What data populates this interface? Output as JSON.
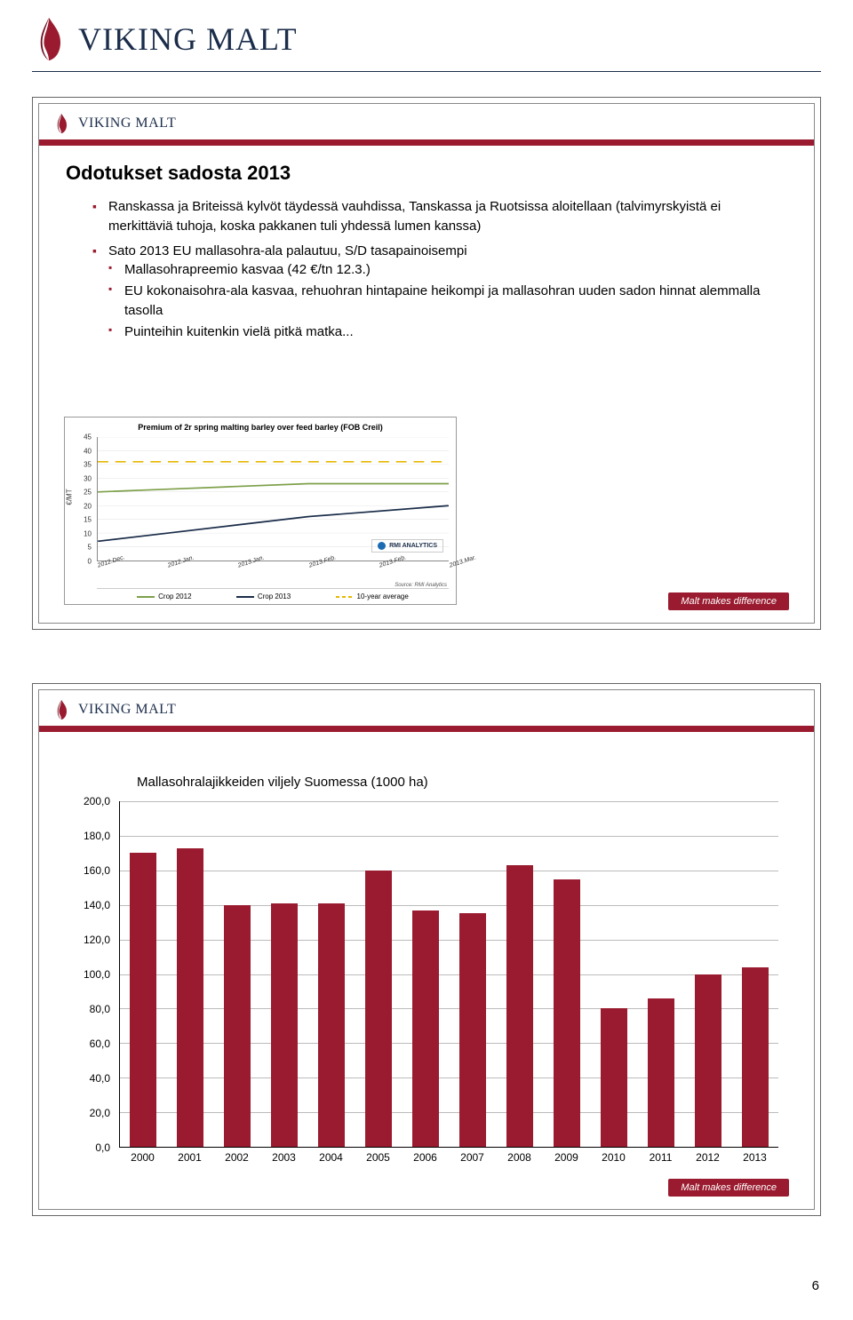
{
  "brand": "VIKING MALT",
  "footer_tag": "Malt makes difference",
  "page_number": "6",
  "colors": {
    "brand_red": "#9a1b2f",
    "brand_navy": "#1b2d4a",
    "grid": "#bbbbbb",
    "bg": "#ffffff"
  },
  "slide1": {
    "title": "Odotukset sadosta 2013",
    "bullets": [
      {
        "text": "Ranskassa ja Briteissä kylvöt täydessä vauhdissa, Tanskassa ja Ruotsissa aloitellaan (talvimyrskyistä ei merkittäviä tuhoja, koska pakkanen tuli yhdessä lumen kanssa)",
        "children": []
      },
      {
        "text": "Sato 2013 EU mallasohra-ala palautuu, S/D tasapainoisempi",
        "children": [
          "Mallasohrapreemio kasvaa (42 €/tn 12.3.)",
          "EU kokonaisohra-ala kasvaa, rehuohran hintapaine heikompi ja mallasohran uuden sadon hinnat alemmalla tasolla",
          "Puinteihin kuitenkin vielä pitkä matka..."
        ]
      }
    ],
    "premium_chart": {
      "title": "Premium of 2r spring malting barley over feed barley (FOB Creil)",
      "y_axis_label": "€/MT",
      "y_ticks": [
        0,
        5,
        10,
        15,
        20,
        25,
        30,
        35,
        40,
        45
      ],
      "ylim": [
        0,
        45
      ],
      "x_labels": [
        "2012.Dec.",
        "2012.Jan.",
        "2013.Jan.",
        "2013.Feb.",
        "2013.Feb.",
        "2013.Mar."
      ],
      "series": [
        {
          "name": "Crop 2012",
          "color": "#7da04a",
          "dash": "0",
          "values": [
            25,
            26,
            27,
            28,
            28,
            28
          ]
        },
        {
          "name": "Crop 2013",
          "color": "#1b2d4a",
          "dash": "0",
          "values": [
            7,
            10,
            13,
            16,
            18,
            20
          ]
        },
        {
          "name": "10-year average",
          "color": "#e6b800",
          "dash": "3,2",
          "values": [
            36,
            36,
            36,
            36,
            36,
            36
          ]
        }
      ],
      "rmi_label": "RMI ANALYTICS",
      "source_note": "Source: RMI Analytics",
      "bg": "#ffffff"
    }
  },
  "slide2": {
    "bar_chart": {
      "title": "Mallasohralajikkeiden viljely Suomessa (1000 ha)",
      "y_ticks": [
        "0,0",
        "20,0",
        "40,0",
        "60,0",
        "80,0",
        "100,0",
        "120,0",
        "140,0",
        "160,0",
        "180,0",
        "200,0"
      ],
      "ylim": [
        0,
        200
      ],
      "categories": [
        "2000",
        "2001",
        "2002",
        "2003",
        "2004",
        "2005",
        "2006",
        "2007",
        "2008",
        "2009",
        "2010",
        "2011",
        "2012",
        "2013"
      ],
      "values": [
        170,
        173,
        140,
        141,
        141,
        160,
        137,
        135,
        163,
        155,
        80,
        86,
        100,
        104
      ],
      "bar_color": "#9a1b2f",
      "grid_color": "#bbbbbb",
      "bg": "#ffffff"
    }
  }
}
